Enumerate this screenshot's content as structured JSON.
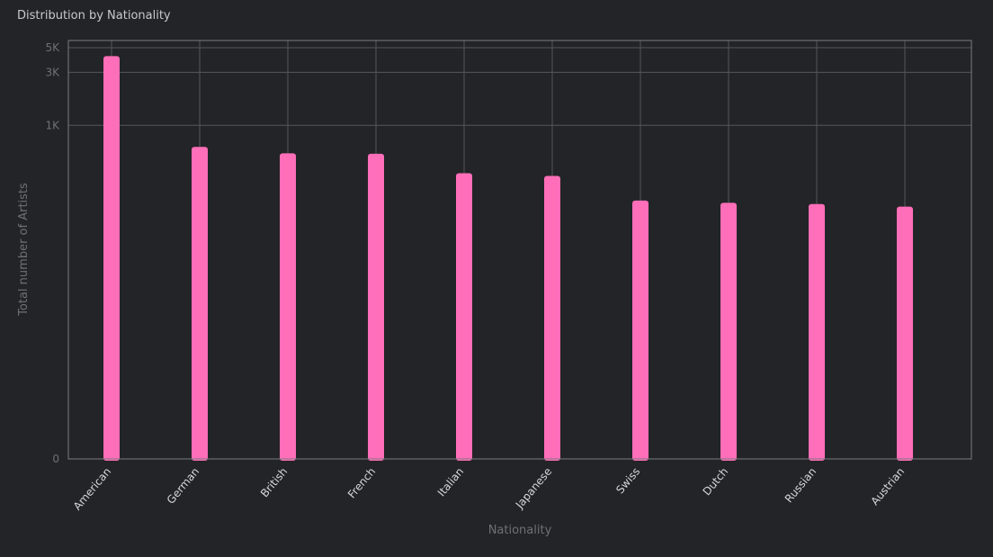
{
  "panel": {
    "title": "Distribution by Nationality"
  },
  "chart_data": {
    "type": "bar",
    "title": "Distribution by Nationality",
    "xlabel": "Nationality",
    "ylabel": "Total number of Artists",
    "y_scale": "log",
    "categories": [
      "American",
      "German",
      "British",
      "French",
      "Italian",
      "Japanese",
      "Swiss",
      "Dutch",
      "Russian",
      "Austrian"
    ],
    "values": [
      4200,
      640,
      560,
      555,
      370,
      350,
      210,
      200,
      195,
      185
    ],
    "yticks": [
      {
        "value": 5000,
        "label": "5K"
      },
      {
        "value": 3000,
        "label": "3K"
      },
      {
        "value": 1000,
        "label": "1K"
      },
      {
        "value": 0,
        "label": "0"
      }
    ],
    "ylim": [
      0,
      5800
    ],
    "grid": true,
    "bar_color": "#ff6eb8"
  }
}
